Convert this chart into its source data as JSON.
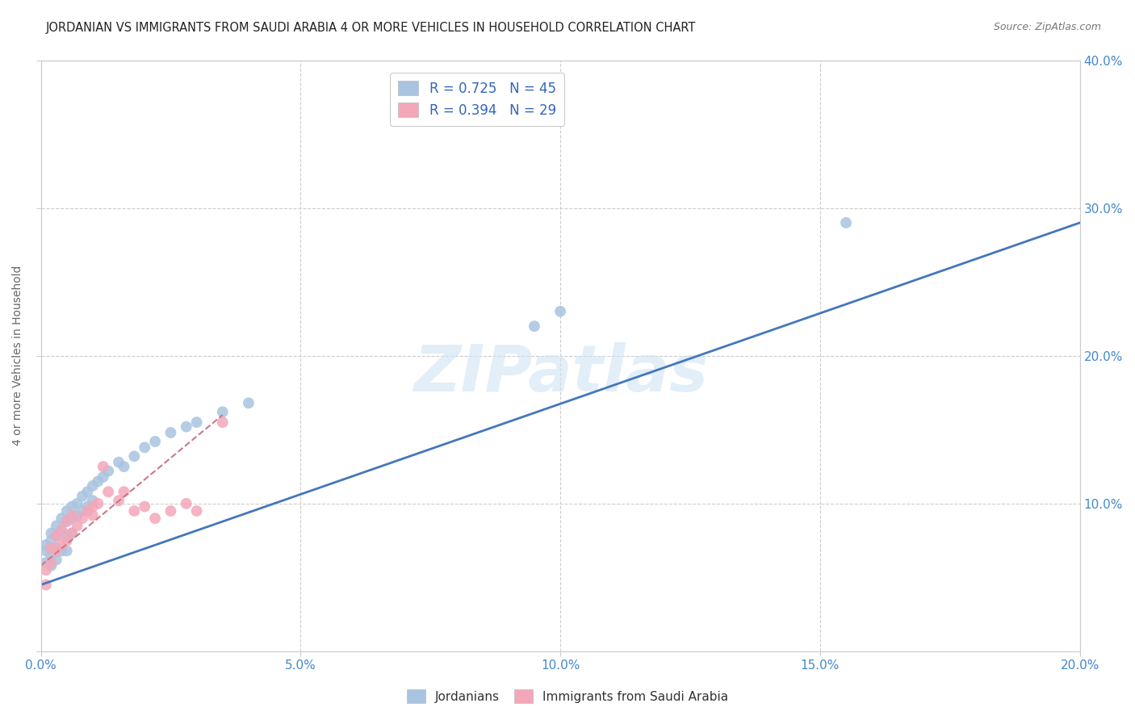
{
  "title": "JORDANIAN VS IMMIGRANTS FROM SAUDI ARABIA 4 OR MORE VEHICLES IN HOUSEHOLD CORRELATION CHART",
  "source": "Source: ZipAtlas.com",
  "ylabel_label": "4 or more Vehicles in Household",
  "xlim": [
    0.0,
    0.2
  ],
  "ylim": [
    0.0,
    0.4
  ],
  "xticks": [
    0.0,
    0.05,
    0.1,
    0.15,
    0.2
  ],
  "yticks": [
    0.0,
    0.1,
    0.2,
    0.3,
    0.4
  ],
  "xtick_labels": [
    "0.0%",
    "5.0%",
    "10.0%",
    "15.0%",
    "20.0%"
  ],
  "right_ytick_labels": [
    "",
    "10.0%",
    "20.0%",
    "30.0%",
    "40.0%"
  ],
  "blue_color": "#a8c4e0",
  "pink_color": "#f4a7b9",
  "blue_line_color": "#4477bb",
  "pink_line_color": "#cc7788",
  "legend_r1": "R = 0.725",
  "legend_n1": "N = 45",
  "legend_r2": "R = 0.394",
  "legend_n2": "N = 29",
  "tick_color": "#4488cc",
  "watermark": "ZIPatlas",
  "jordanians_x": [
    0.001,
    0.001,
    0.001,
    0.002,
    0.002,
    0.002,
    0.002,
    0.003,
    0.003,
    0.003,
    0.003,
    0.004,
    0.004,
    0.004,
    0.005,
    0.005,
    0.005,
    0.005,
    0.006,
    0.006,
    0.006,
    0.007,
    0.007,
    0.008,
    0.008,
    0.009,
    0.009,
    0.01,
    0.01,
    0.011,
    0.012,
    0.013,
    0.015,
    0.016,
    0.018,
    0.02,
    0.022,
    0.025,
    0.028,
    0.03,
    0.035,
    0.04,
    0.095,
    0.1,
    0.155
  ],
  "jordanians_y": [
    0.072,
    0.068,
    0.06,
    0.08,
    0.075,
    0.065,
    0.058,
    0.085,
    0.078,
    0.07,
    0.062,
    0.09,
    0.082,
    0.068,
    0.095,
    0.088,
    0.078,
    0.068,
    0.098,
    0.09,
    0.08,
    0.1,
    0.092,
    0.105,
    0.095,
    0.108,
    0.098,
    0.112,
    0.102,
    0.115,
    0.118,
    0.122,
    0.128,
    0.125,
    0.132,
    0.138,
    0.142,
    0.148,
    0.152,
    0.155,
    0.162,
    0.168,
    0.22,
    0.23,
    0.29
  ],
  "saudi_x": [
    0.001,
    0.001,
    0.002,
    0.002,
    0.003,
    0.003,
    0.004,
    0.004,
    0.005,
    0.005,
    0.006,
    0.006,
    0.007,
    0.008,
    0.009,
    0.01,
    0.01,
    0.011,
    0.012,
    0.013,
    0.015,
    0.016,
    0.018,
    0.02,
    0.022,
    0.025,
    0.028,
    0.03,
    0.035
  ],
  "saudi_y": [
    0.045,
    0.055,
    0.06,
    0.07,
    0.068,
    0.078,
    0.072,
    0.082,
    0.075,
    0.088,
    0.08,
    0.092,
    0.085,
    0.09,
    0.095,
    0.098,
    0.092,
    0.1,
    0.125,
    0.108,
    0.102,
    0.108,
    0.095,
    0.098,
    0.09,
    0.095,
    0.1,
    0.095,
    0.155
  ],
  "blue_line_x": [
    0.0,
    0.2
  ],
  "blue_line_y": [
    0.045,
    0.29
  ],
  "pink_line_x": [
    0.0,
    0.035
  ],
  "pink_line_y": [
    0.058,
    0.16
  ]
}
